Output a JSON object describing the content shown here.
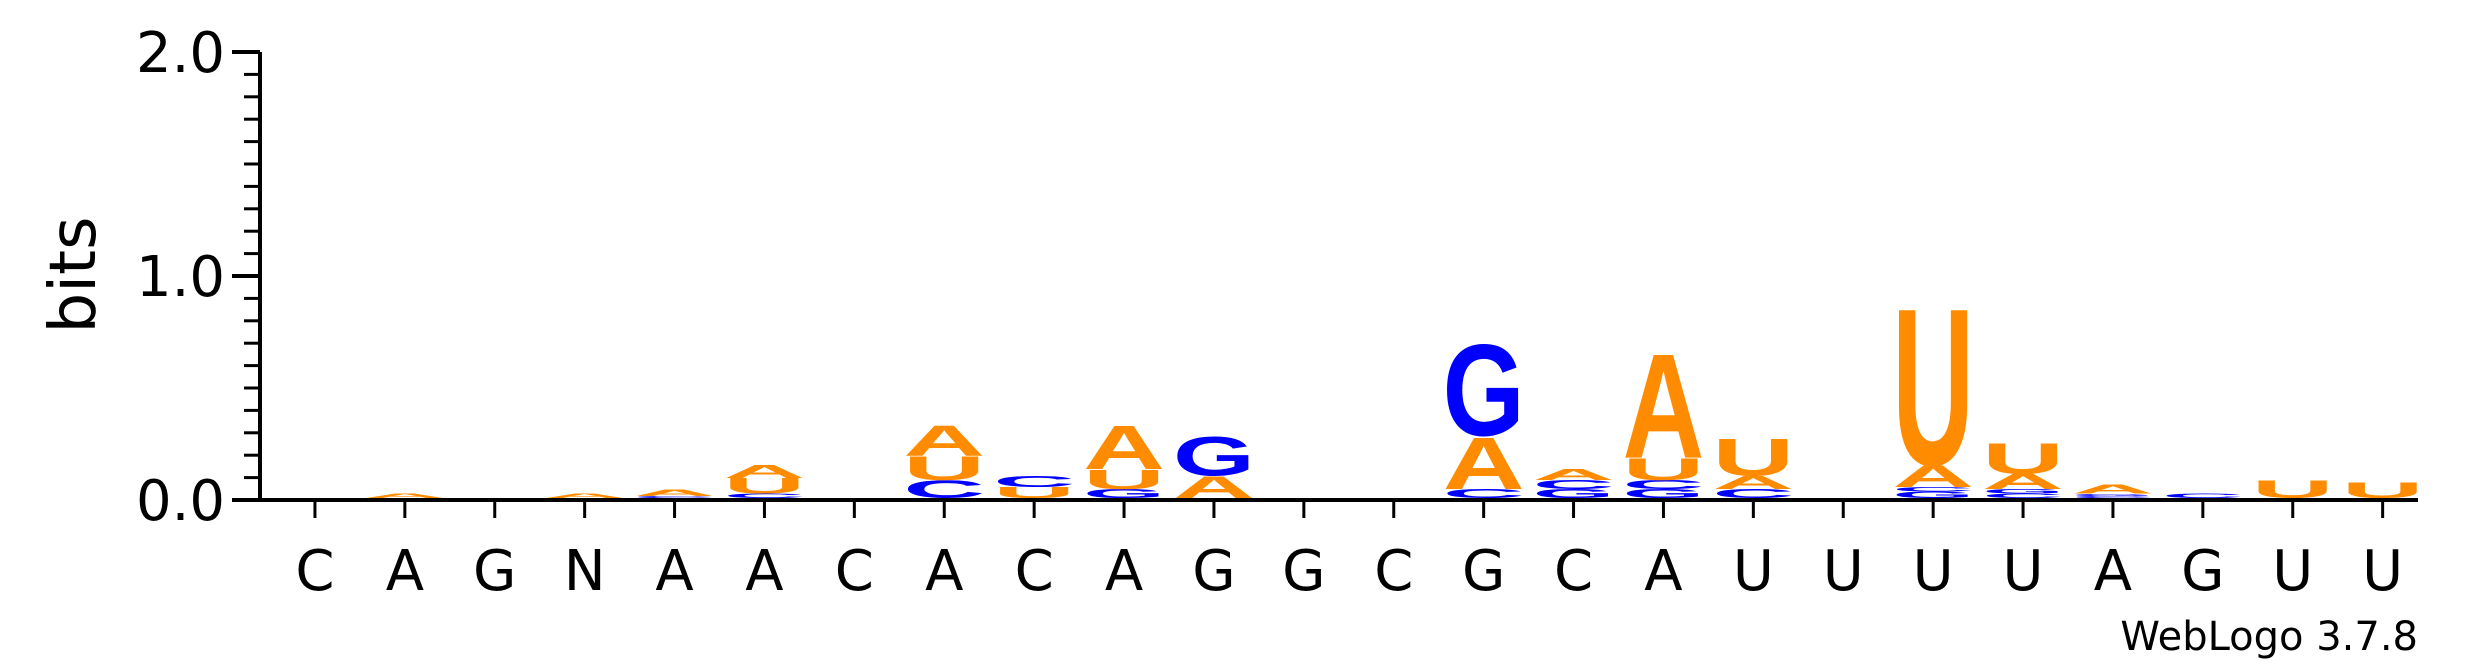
{
  "chart_data": {
    "type": "sequence-logo",
    "ylabel": "bits",
    "ylim": [
      0,
      2.0
    ],
    "yticks": [
      "0.0",
      "1.0",
      "2.0"
    ],
    "positions": [
      "C",
      "A",
      "G",
      "N",
      "A",
      "A",
      "C",
      "A",
      "C",
      "A",
      "G",
      "G",
      "C",
      "G",
      "C",
      "A",
      "U",
      "U",
      "U",
      "U",
      "A",
      "G",
      "U",
      "U"
    ],
    "colors": {
      "A": "#FF8C00",
      "U": "#FF8C00",
      "G": "#0000FF",
      "C": "#0000FF"
    },
    "stacks": [
      [],
      [
        [
          "A",
          0.02
        ]
      ],
      [],
      [
        [
          "A",
          0.02
        ]
      ],
      [
        [
          "C",
          0.01
        ],
        [
          "A",
          0.03
        ]
      ],
      [
        [
          "C",
          0.02
        ],
        [
          "U",
          0.07
        ],
        [
          "A",
          0.06
        ]
      ],
      [],
      [
        [
          "C",
          0.08
        ],
        [
          "U",
          0.11
        ],
        [
          "A",
          0.14
        ]
      ],
      [
        [
          "U",
          0.05
        ],
        [
          "C",
          0.05
        ]
      ],
      [
        [
          "G",
          0.04
        ],
        [
          "U",
          0.09
        ],
        [
          "A",
          0.2
        ]
      ],
      [
        [
          "A",
          0.1
        ],
        [
          "G",
          0.18
        ]
      ],
      [],
      [],
      [
        [
          "C",
          0.04
        ],
        [
          "A",
          0.24
        ],
        [
          "G",
          0.42
        ]
      ],
      [
        [
          "G",
          0.04
        ],
        [
          "C",
          0.04
        ],
        [
          "A",
          0.05
        ]
      ],
      [
        [
          "G",
          0.04
        ],
        [
          "C",
          0.04
        ],
        [
          "U",
          0.1
        ],
        [
          "A",
          0.48
        ]
      ],
      [
        [
          "C",
          0.04
        ],
        [
          "A",
          0.06
        ],
        [
          "U",
          0.17
        ]
      ],
      [],
      [
        [
          "G",
          0.03
        ],
        [
          "C",
          0.02
        ],
        [
          "A",
          0.1
        ],
        [
          "U",
          0.72
        ]
      ],
      [
        [
          "C",
          0.02
        ],
        [
          "G",
          0.02
        ],
        [
          "A",
          0.07
        ],
        [
          "U",
          0.14
        ]
      ],
      [
        [
          "C",
          0.01
        ],
        [
          "G",
          0.01
        ],
        [
          "A",
          0.04
        ]
      ],
      [
        [
          "C",
          0.02
        ]
      ],
      [
        [
          "U",
          0.08
        ]
      ],
      [
        [
          "U",
          0.07
        ]
      ]
    ],
    "credit": "WebLogo 3.7.8"
  }
}
